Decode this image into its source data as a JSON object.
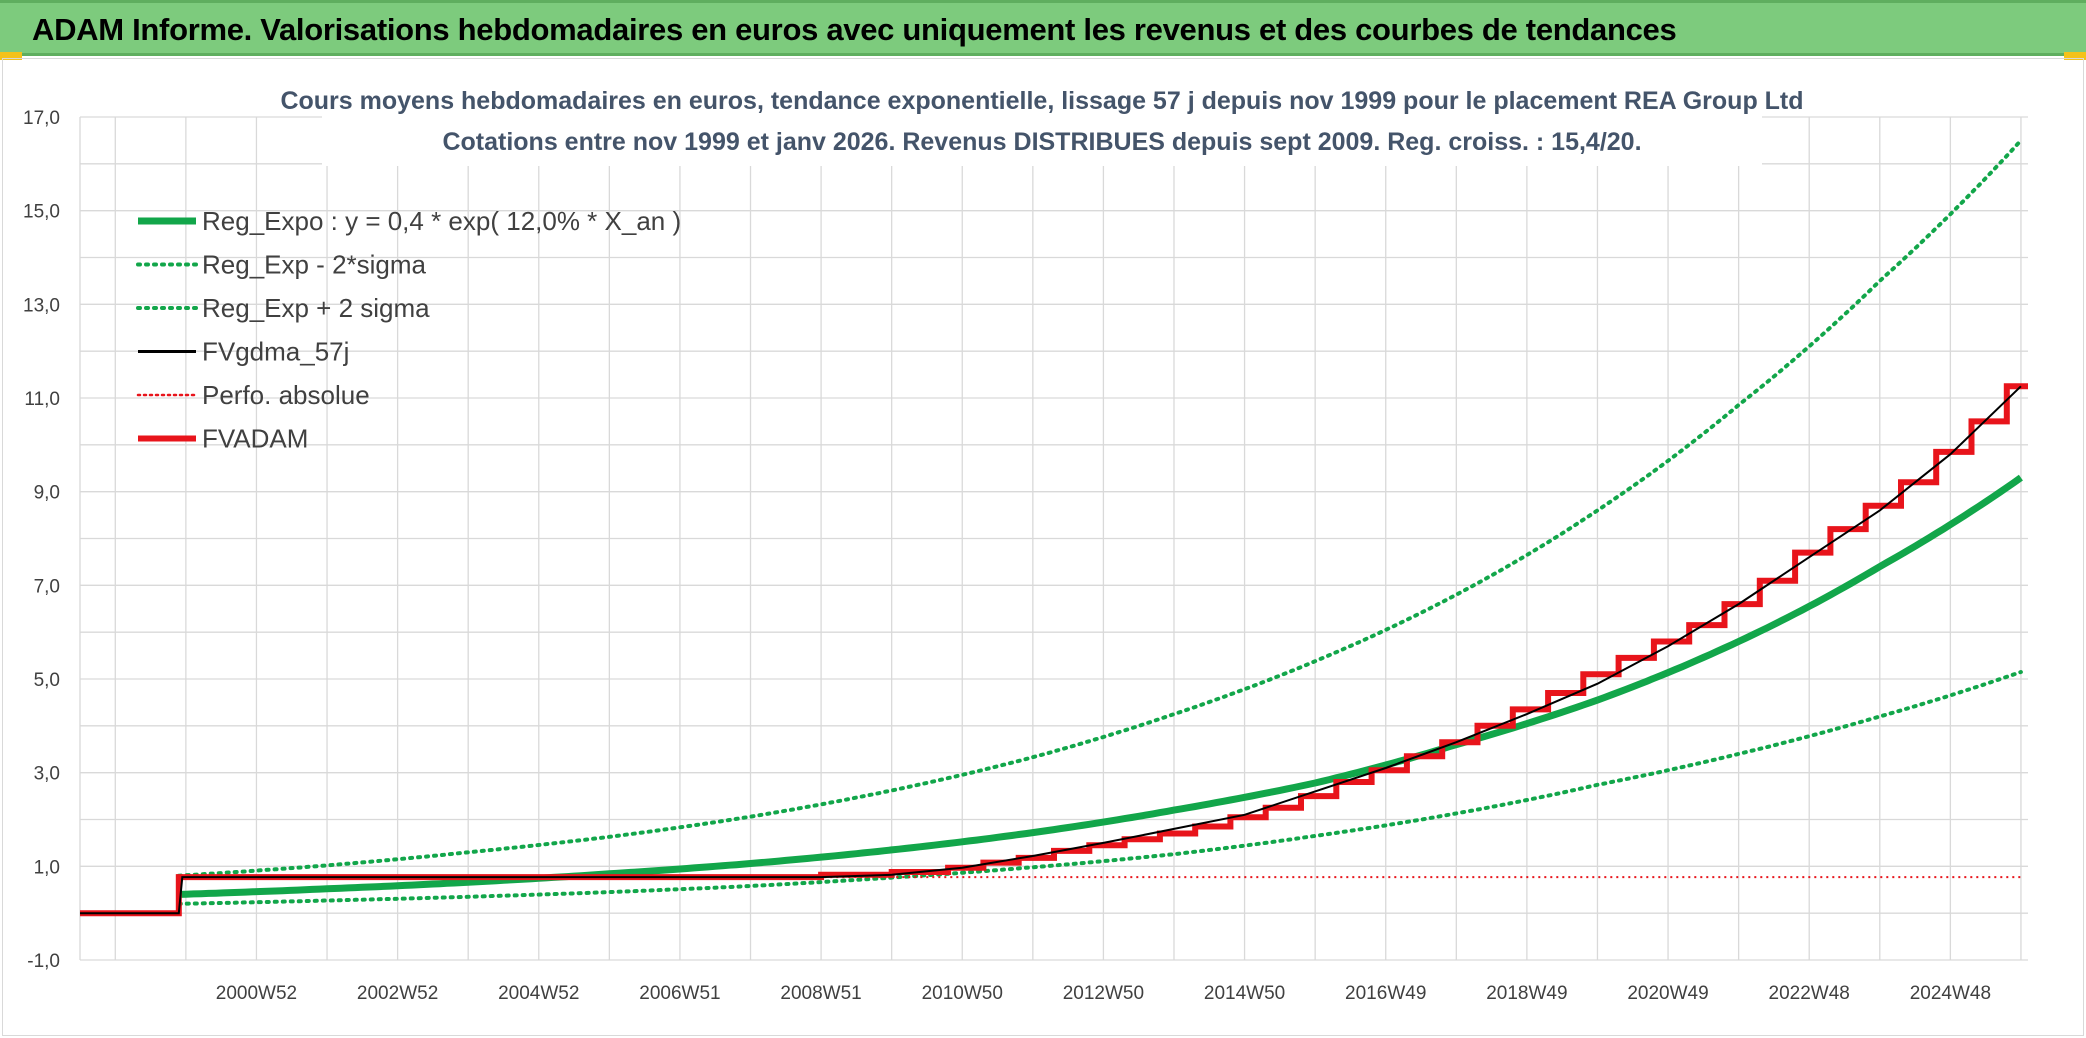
{
  "header": {
    "title": "ADAM Informe. Valorisations hebdomadaires en euros avec uniquement les revenus et des courbes de tendances"
  },
  "colors": {
    "banner": "#7dcb7d",
    "reg_expo": "#12a64a",
    "fvgdma": "#000000",
    "fvadam": "#e8141b",
    "grid": "#d9d9d9"
  },
  "chart_data": {
    "type": "line",
    "title": "Cours moyens hebdomadaires en euros, tendance exponentielle, lissage 57 j depuis nov 1999 pour le placement REA Group Ltd",
    "subtitle": "Cotations entre nov 1999 et janv 2026. Revenus DISTRIBUES depuis sept 2009. Reg. croiss. : 15,4/20.",
    "xlabel": "",
    "ylabel": "",
    "ylim": [
      -1,
      17
    ],
    "yticks": [
      "-1,0",
      "1,0",
      "3,0",
      "5,0",
      "7,0",
      "9,0",
      "11,0",
      "13,0",
      "15,0",
      "17,0"
    ],
    "xlim": [
      1998.5,
      2026.1
    ],
    "xticks": [
      {
        "label": "2000W52",
        "x": 2001.0
      },
      {
        "label": "2002W52",
        "x": 2003.0
      },
      {
        "label": "2004W52",
        "x": 2005.0
      },
      {
        "label": "2006W51",
        "x": 2007.0
      },
      {
        "label": "2008W51",
        "x": 2009.0
      },
      {
        "label": "2010W50",
        "x": 2011.0
      },
      {
        "label": "2012W50",
        "x": 2013.0
      },
      {
        "label": "2014W50",
        "x": 2015.0
      },
      {
        "label": "2016W49",
        "x": 2017.0
      },
      {
        "label": "2018W49",
        "x": 2019.0
      },
      {
        "label": "2020W49",
        "x": 2021.0
      },
      {
        "label": "2022W48",
        "x": 2023.0
      },
      {
        "label": "2024W48",
        "x": 2025.0
      }
    ],
    "grid": true,
    "legend_position": "top-left",
    "series": [
      {
        "name": "Reg_Expo : y = 0,4 * exp( 12,0% *  X_an )",
        "style": "solid-thick",
        "color": "#12a64a",
        "x": [
          1999.9,
          2002,
          2004,
          2006,
          2008,
          2010,
          2012,
          2014,
          2016,
          2018,
          2020,
          2022,
          2024,
          2026
        ],
        "y": [
          0.4,
          0.52,
          0.66,
          0.84,
          1.06,
          1.35,
          1.72,
          2.2,
          2.78,
          3.6,
          4.55,
          5.8,
          7.4,
          9.3
        ]
      },
      {
        "name": "Reg_Exp - 2*sigma",
        "style": "dotted",
        "color": "#12a64a",
        "x": [
          1999.9,
          2002,
          2004,
          2006,
          2008,
          2010,
          2012,
          2014,
          2016,
          2018,
          2020,
          2022,
          2024,
          2026
        ],
        "y": [
          0.2,
          0.27,
          0.35,
          0.45,
          0.58,
          0.76,
          0.98,
          1.26,
          1.65,
          2.13,
          2.74,
          3.4,
          4.2,
          5.15
        ]
      },
      {
        "name": "Reg_Exp + 2 sigma",
        "style": "dotted",
        "color": "#12a64a",
        "x": [
          1999.9,
          2002,
          2004,
          2006,
          2008,
          2010,
          2012,
          2014,
          2016,
          2018,
          2020,
          2022,
          2024,
          2026
        ],
        "y": [
          0.8,
          1.02,
          1.3,
          1.63,
          2.06,
          2.62,
          3.33,
          4.25,
          5.38,
          6.8,
          8.6,
          10.85,
          13.5,
          16.5
        ]
      },
      {
        "name": "FVgdma_57j",
        "style": "solid-thin",
        "color": "#000000",
        "x": [
          1998.5,
          1999.9,
          1999.95,
          2005,
          2009,
          2010,
          2011,
          2012,
          2013,
          2014,
          2015,
          2016,
          2017,
          2018,
          2019,
          2020,
          2021,
          2022,
          2023,
          2024,
          2025,
          2026
        ],
        "y": [
          0.0,
          0.0,
          0.77,
          0.77,
          0.77,
          0.82,
          0.97,
          1.22,
          1.5,
          1.8,
          2.1,
          2.6,
          3.1,
          3.65,
          4.25,
          4.9,
          5.7,
          6.6,
          7.6,
          8.6,
          9.8,
          11.25
        ]
      },
      {
        "name": "Perfo. absolue",
        "style": "dotted",
        "color": "#e8141b",
        "x": [
          1999.95,
          2026
        ],
        "y": [
          0.77,
          0.77
        ]
      },
      {
        "name": "FVADAM",
        "style": "solid-thick",
        "color": "#e8141b",
        "x": [
          1998.5,
          1999.9,
          1999.9,
          2009.0
        ],
        "y": [
          0.0,
          0.0,
          0.77,
          0.77
        ],
        "steps": [
          [
            2009.0,
            0.82
          ],
          [
            2010.0,
            0.88
          ],
          [
            2010.8,
            0.97
          ],
          [
            2011.3,
            1.08
          ],
          [
            2011.8,
            1.18
          ],
          [
            2012.3,
            1.33
          ],
          [
            2012.8,
            1.45
          ],
          [
            2013.3,
            1.58
          ],
          [
            2013.8,
            1.7
          ],
          [
            2014.3,
            1.85
          ],
          [
            2014.8,
            2.05
          ],
          [
            2015.3,
            2.25
          ],
          [
            2015.8,
            2.5
          ],
          [
            2016.3,
            2.8
          ],
          [
            2016.8,
            3.05
          ],
          [
            2017.3,
            3.35
          ],
          [
            2017.8,
            3.65
          ],
          [
            2018.3,
            4.0
          ],
          [
            2018.8,
            4.35
          ],
          [
            2019.3,
            4.7
          ],
          [
            2019.8,
            5.1
          ],
          [
            2020.3,
            5.45
          ],
          [
            2020.8,
            5.8
          ],
          [
            2021.3,
            6.15
          ],
          [
            2021.8,
            6.6
          ],
          [
            2022.3,
            7.1
          ],
          [
            2022.8,
            7.7
          ],
          [
            2023.3,
            8.2
          ],
          [
            2023.8,
            8.7
          ],
          [
            2024.3,
            9.2
          ],
          [
            2024.8,
            9.85
          ],
          [
            2025.3,
            10.5
          ],
          [
            2025.8,
            11.25
          ]
        ],
        "end_x": 2026.1
      }
    ]
  }
}
